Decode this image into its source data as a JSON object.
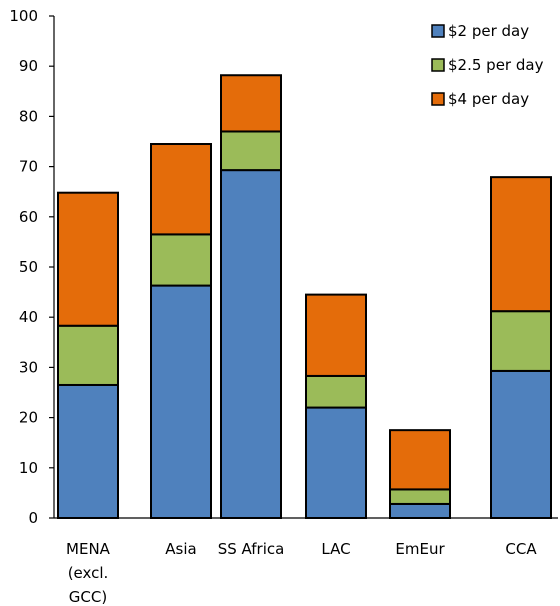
{
  "chart_data": {
    "type": "bar",
    "stacked": true,
    "title": "",
    "xlabel": "",
    "ylabel": "",
    "ylim": [
      0,
      100
    ],
    "yticks": [
      0,
      10,
      20,
      30,
      40,
      50,
      60,
      70,
      80,
      90,
      100
    ],
    "grid": false,
    "legend_position": "top-right",
    "categories": [
      [
        "MENA",
        "(excl.",
        "GCC)"
      ],
      [
        "Asia"
      ],
      [
        "SS Africa"
      ],
      [
        "LAC"
      ],
      [
        "EmEur"
      ],
      [
        "CCA"
      ]
    ],
    "series": [
      {
        "name": "$2 per day",
        "color": "#4F81BD",
        "values": [
          26.5,
          46.3,
          69.3,
          22.0,
          2.8,
          29.3
        ]
      },
      {
        "name": "$2.5 per day",
        "color": "#9BBB59",
        "values": [
          11.8,
          10.2,
          7.7,
          6.3,
          2.9,
          11.9
        ]
      },
      {
        "name": "$4 per day",
        "color": "#E46C0A",
        "values": [
          26.5,
          18.0,
          11.2,
          16.2,
          11.8,
          26.7
        ]
      }
    ]
  }
}
